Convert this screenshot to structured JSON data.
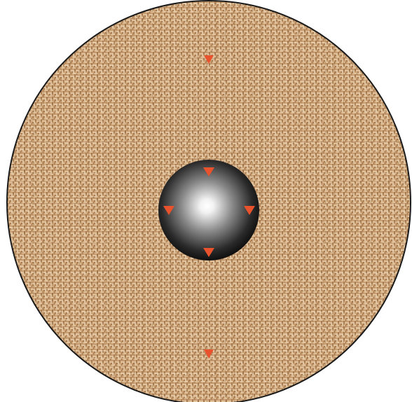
{
  "diagram": {
    "disc": {
      "fill_base": "#c9a074",
      "fill_light": "#e2c29a",
      "fill_dark": "#9c6c44",
      "outline": "#1a1a1a"
    },
    "sphere": {
      "highlight": "#ffffff",
      "mid": "#8a8a8a",
      "shadow": "#0a0a0a"
    },
    "markers": {
      "color": "#e8522c",
      "shape": "downward-triangle",
      "count": 6
    }
  }
}
